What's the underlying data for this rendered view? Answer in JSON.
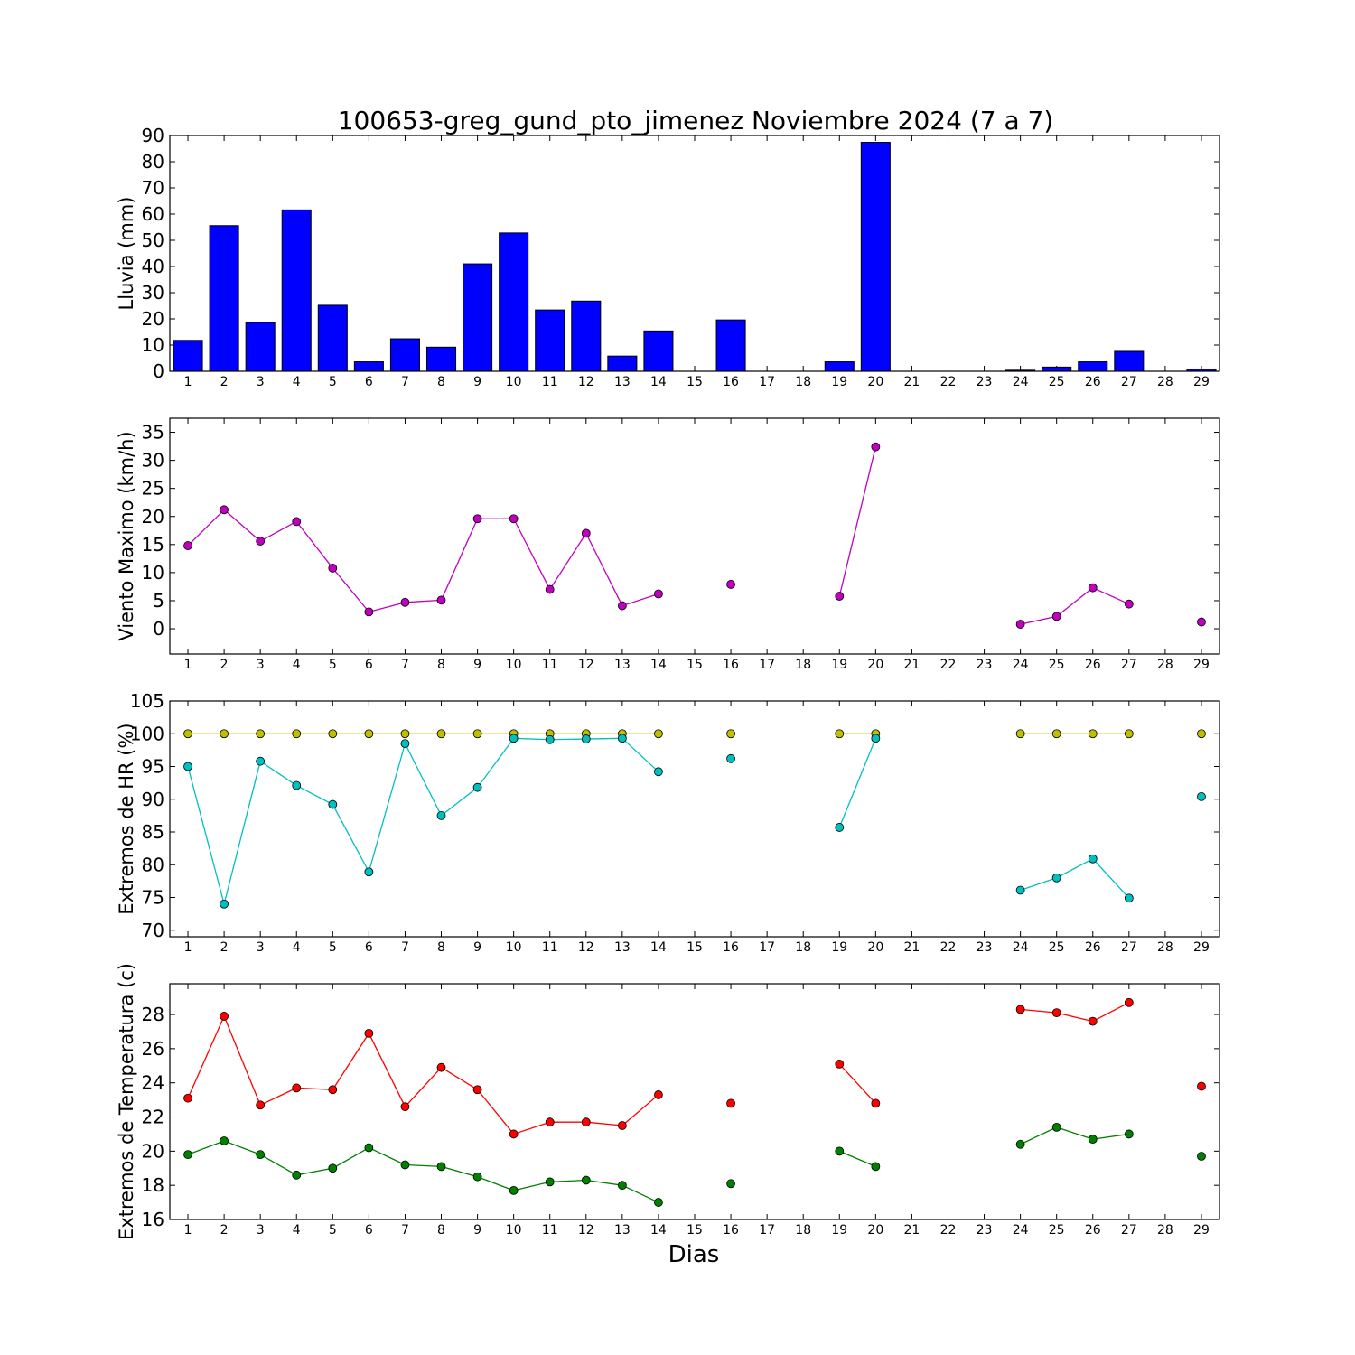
{
  "figure": {
    "title": "100653-greg_gund_pto_jimenez Noviembre 2024  (7 a 7)",
    "xlabel": "Dias"
  },
  "colors": {
    "rain": "#0000ff",
    "wind": "#bf00bf",
    "hr_max": "#bfbf00",
    "hr_min": "#00bfbf",
    "temp_max": "#ff0000",
    "temp_min": "#008000"
  },
  "chart_data": [
    {
      "type": "bar",
      "id": "rain",
      "ylabel": "Lluvia (mm)",
      "x": [
        1,
        2,
        3,
        4,
        5,
        6,
        7,
        8,
        9,
        10,
        11,
        12,
        13,
        14,
        15,
        16,
        17,
        18,
        19,
        20,
        21,
        22,
        23,
        24,
        25,
        26,
        27,
        28,
        29
      ],
      "ylim": [
        0,
        90
      ],
      "yticks": [
        0,
        10,
        20,
        30,
        40,
        50,
        60,
        70,
        80,
        90
      ],
      "series": [
        {
          "values": [
            11.8,
            55.6,
            18.6,
            61.6,
            25.2,
            3.6,
            12.4,
            9.2,
            41.0,
            52.8,
            23.4,
            26.8,
            5.8,
            15.4,
            0,
            19.6,
            0,
            0,
            3.6,
            87.4,
            0,
            0,
            0,
            0.4,
            1.6,
            3.6,
            7.6,
            0,
            0.8
          ]
        }
      ]
    },
    {
      "type": "line",
      "id": "wind",
      "ylabel": "Viento Maximo (km/h)",
      "x": [
        1,
        2,
        3,
        4,
        5,
        6,
        7,
        8,
        9,
        10,
        11,
        12,
        13,
        14,
        15,
        16,
        17,
        18,
        19,
        20,
        21,
        22,
        23,
        24,
        25,
        26,
        27,
        28,
        29
      ],
      "ylim": [
        -4.5,
        37.5
      ],
      "yticks": [
        0,
        5,
        10,
        15,
        20,
        25,
        30,
        35
      ],
      "series": [
        {
          "values": [
            14.8,
            21.2,
            15.6,
            19.1,
            10.8,
            3.0,
            4.7,
            5.1,
            19.6,
            19.6,
            7.0,
            17.0,
            4.1,
            6.2,
            null,
            7.9,
            null,
            null,
            5.8,
            32.4,
            null,
            null,
            null,
            0.8,
            2.2,
            7.3,
            4.4,
            null,
            1.2
          ]
        }
      ]
    },
    {
      "type": "line",
      "id": "hr",
      "ylabel": "Extremos de HR (%)",
      "x": [
        1,
        2,
        3,
        4,
        5,
        6,
        7,
        8,
        9,
        10,
        11,
        12,
        13,
        14,
        15,
        16,
        17,
        18,
        19,
        20,
        21,
        22,
        23,
        24,
        25,
        26,
        27,
        28,
        29
      ],
      "ylim": [
        69,
        105
      ],
      "yticks": [
        70,
        75,
        80,
        85,
        90,
        95,
        100,
        105
      ],
      "series": [
        {
          "values": [
            100,
            100,
            100,
            100,
            100,
            100,
            100,
            100,
            100,
            100,
            100,
            100,
            100,
            100,
            null,
            100,
            null,
            null,
            100,
            100,
            null,
            null,
            null,
            100,
            100,
            100,
            100,
            null,
            100
          ]
        },
        {
          "values": [
            95.0,
            74.0,
            95.8,
            92.1,
            89.2,
            78.9,
            98.5,
            87.5,
            91.8,
            99.3,
            99.1,
            99.2,
            99.3,
            94.2,
            null,
            96.2,
            null,
            null,
            85.7,
            99.3,
            null,
            null,
            null,
            76.1,
            78.0,
            80.9,
            74.9,
            null,
            90.4
          ]
        }
      ]
    },
    {
      "type": "line",
      "id": "temp",
      "ylabel": "Extremos de Temperatura (c)",
      "x": [
        1,
        2,
        3,
        4,
        5,
        6,
        7,
        8,
        9,
        10,
        11,
        12,
        13,
        14,
        15,
        16,
        17,
        18,
        19,
        20,
        21,
        22,
        23,
        24,
        25,
        26,
        27,
        28,
        29
      ],
      "ylim": [
        16,
        29.8
      ],
      "yticks": [
        16,
        18,
        20,
        22,
        24,
        26,
        28
      ],
      "series": [
        {
          "values": [
            23.1,
            27.9,
            22.7,
            23.7,
            23.6,
            26.9,
            22.6,
            24.9,
            23.6,
            21.0,
            21.7,
            21.7,
            21.5,
            23.3,
            null,
            22.8,
            null,
            null,
            25.1,
            22.8,
            null,
            null,
            null,
            28.3,
            28.1,
            27.6,
            28.7,
            null,
            23.8
          ]
        },
        {
          "values": [
            19.8,
            20.6,
            19.8,
            18.6,
            19.0,
            20.2,
            19.2,
            19.1,
            18.5,
            17.7,
            18.2,
            18.3,
            18.0,
            17.0,
            null,
            18.1,
            null,
            null,
            20.0,
            19.1,
            null,
            null,
            null,
            20.4,
            21.4,
            20.7,
            21.0,
            null,
            19.7
          ]
        }
      ]
    }
  ]
}
